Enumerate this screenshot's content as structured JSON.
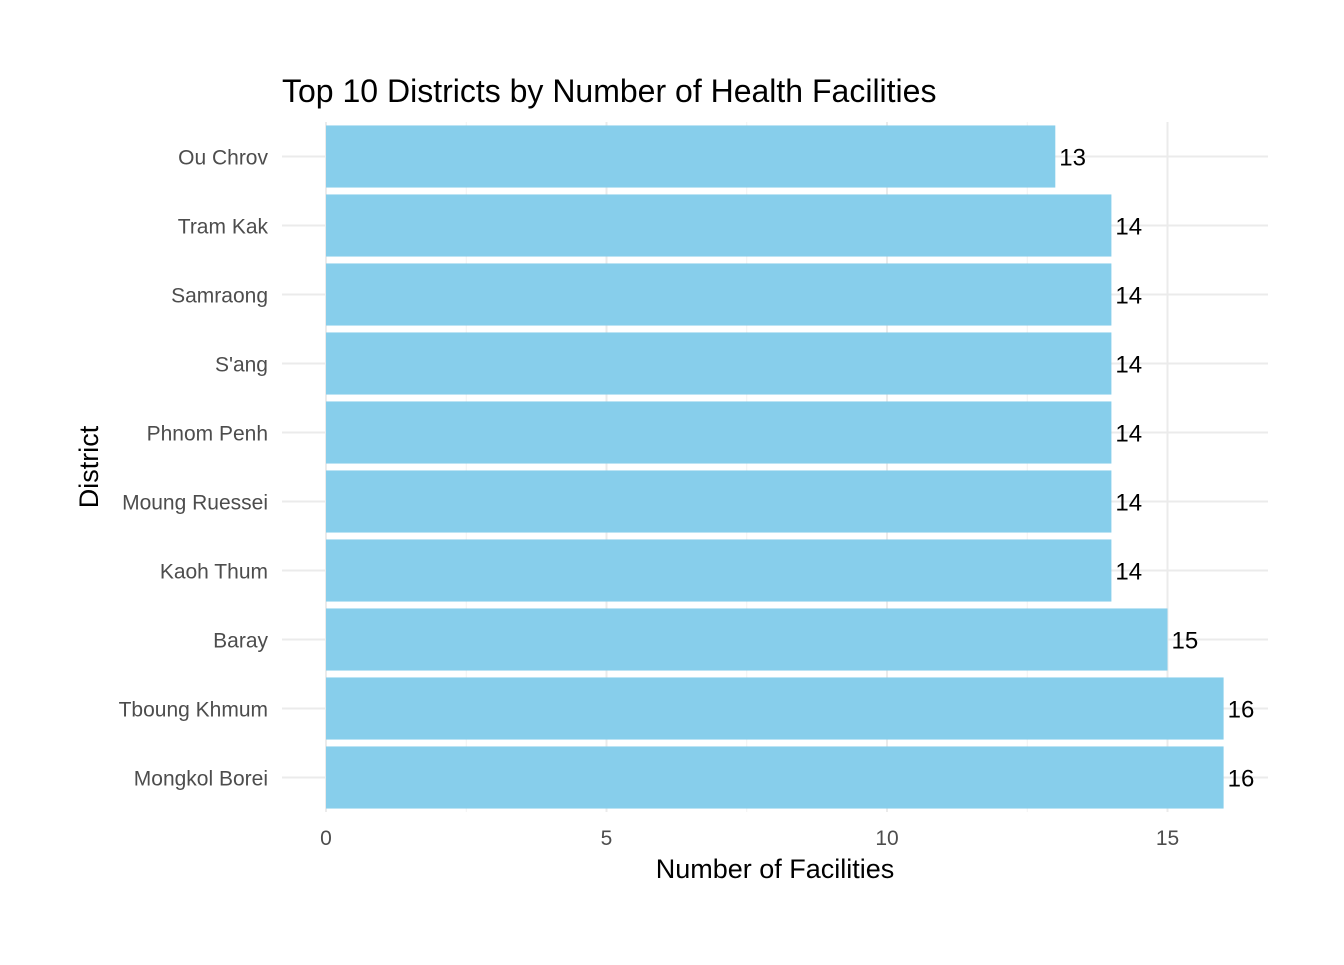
{
  "chart_data": {
    "type": "bar",
    "orientation": "horizontal",
    "title": "Top 10 Districts by Number of Health Facilities",
    "xlabel": "Number of Facilities",
    "ylabel": "District",
    "categories": [
      "Ou Chrov",
      "Tram Kak",
      "Samraong",
      "S'ang",
      "Phnom Penh",
      "Moung Ruessei",
      "Kaoh Thum",
      "Baray",
      "Tboung Khmum",
      "Mongkol Borei"
    ],
    "values": [
      13,
      14,
      14,
      14,
      14,
      14,
      14,
      15,
      16,
      16
    ],
    "data_labels": [
      "13",
      "14",
      "14",
      "14",
      "14",
      "14",
      "14",
      "15",
      "16",
      "16"
    ],
    "x_ticks": [
      0,
      5,
      10,
      15
    ],
    "x_tick_labels": [
      "0",
      "5",
      "10",
      "15"
    ],
    "xlim": [
      0,
      16.8
    ],
    "bar_color": "#87CEEB",
    "grid": true,
    "legend": "none"
  }
}
